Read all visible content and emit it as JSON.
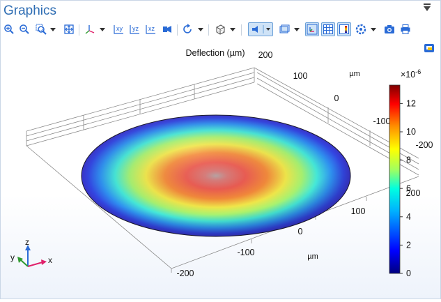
{
  "window": {
    "title": "Graphics"
  },
  "toolbar": {
    "buttons": [
      {
        "name": "zoom-in",
        "icon": "zoom-in-icon"
      },
      {
        "name": "zoom-out",
        "icon": "zoom-out-icon"
      },
      {
        "name": "zoom-box",
        "icon": "zoom-box-icon"
      },
      {
        "name": "zoom-extents",
        "icon": "zoom-extents-icon"
      },
      {
        "name": "view-axes",
        "icon": "axes-icon"
      },
      {
        "name": "xy-view",
        "icon": "xy-plane-icon",
        "label": "xy"
      },
      {
        "name": "yz-view",
        "icon": "yz-plane-icon",
        "label": "yz"
      },
      {
        "name": "xz-view",
        "icon": "xz-plane-icon",
        "label": "xz"
      },
      {
        "name": "camera-view",
        "icon": "camera-view-icon"
      },
      {
        "name": "rotate",
        "icon": "rotate-icon"
      },
      {
        "name": "render-mode",
        "icon": "wireframe-cube-icon"
      },
      {
        "name": "scene-light",
        "icon": "light-icon"
      },
      {
        "name": "transparency",
        "icon": "transparency-icon"
      },
      {
        "name": "show-axis",
        "icon": "axis-orientation-icon"
      },
      {
        "name": "show-grid",
        "icon": "grid-icon"
      },
      {
        "name": "show-legend",
        "icon": "legend-icon"
      },
      {
        "name": "color-table",
        "icon": "color-wheel-icon"
      },
      {
        "name": "snapshot",
        "icon": "camera-icon"
      },
      {
        "name": "print",
        "icon": "print-icon"
      }
    ]
  },
  "plot": {
    "title": "Deflection (µm)",
    "colorbar": {
      "exponent_label": "×10",
      "exponent": "-6",
      "ticks": [
        "12",
        "10",
        "8",
        "6",
        "4",
        "2",
        "0"
      ],
      "tick_values": [
        12,
        10,
        8,
        6,
        4,
        2,
        0
      ],
      "min": 0,
      "max": 13.3,
      "colors": [
        "#00007f",
        "#0000ff",
        "#007fff",
        "#00ffff",
        "#7fff7f",
        "#ffff00",
        "#ff7f00",
        "#ff0000",
        "#7f0000"
      ]
    },
    "axes": {
      "front_x_ticks": [
        "100",
        "0",
        "-100",
        "-200"
      ],
      "front_x_unit": "µm",
      "right_y_ticks": [
        "200",
        "100",
        "0",
        "-100",
        "-200"
      ],
      "right_y_unit": "µm",
      "far_right_ticks": [
        "-200"
      ],
      "near_right_ticks": [
        "200"
      ]
    },
    "triad": {
      "x": "x",
      "y": "y",
      "z": "z",
      "x_color": "#e0206a",
      "y_color": "#2e9a2e",
      "z_color": "#2a6bd6"
    }
  }
}
